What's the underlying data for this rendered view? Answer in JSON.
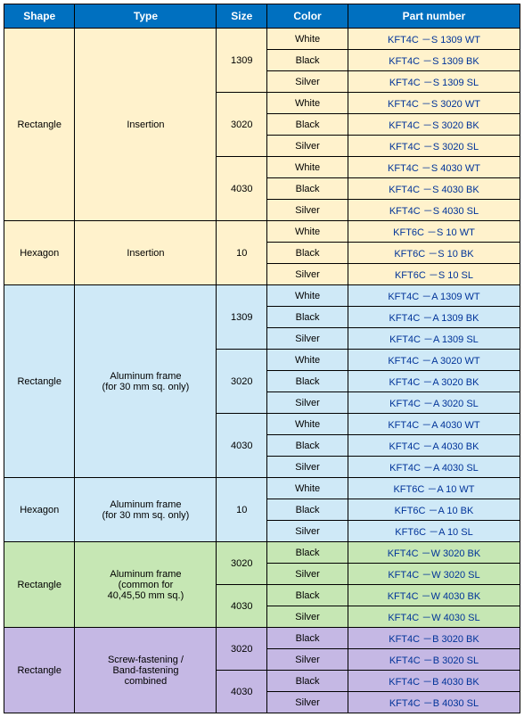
{
  "headers": [
    "Shape",
    "Type",
    "Size",
    "Color",
    "Part number"
  ],
  "groups": [
    {
      "bg": "#fff2cc",
      "shape": "Rectangle",
      "type": "Insertion",
      "sizes": [
        {
          "size": "1309",
          "rows": [
            {
              "color": "White",
              "part": "KFT4C －S 1309 WT"
            },
            {
              "color": "Black",
              "part": "KFT4C －S 1309 BK"
            },
            {
              "color": "Silver",
              "part": "KFT4C －S 1309 SL"
            }
          ]
        },
        {
          "size": "3020",
          "rows": [
            {
              "color": "White",
              "part": "KFT4C －S 3020 WT"
            },
            {
              "color": "Black",
              "part": "KFT4C －S 3020 BK"
            },
            {
              "color": "Silver",
              "part": "KFT4C －S 3020 SL"
            }
          ]
        },
        {
          "size": "4030",
          "rows": [
            {
              "color": "White",
              "part": "KFT4C －S 4030 WT"
            },
            {
              "color": "Black",
              "part": "KFT4C －S 4030 BK"
            },
            {
              "color": "Silver",
              "part": "KFT4C －S 4030 SL"
            }
          ]
        }
      ]
    },
    {
      "bg": "#fff2cc",
      "shape": "Hexagon",
      "type": "Insertion",
      "sizes": [
        {
          "size": "10",
          "rows": [
            {
              "color": "White",
              "part": "KFT6C －S 10 WT"
            },
            {
              "color": "Black",
              "part": "KFT6C －S 10 BK"
            },
            {
              "color": "Silver",
              "part": "KFT6C －S 10 SL"
            }
          ]
        }
      ]
    },
    {
      "bg": "#cfe9f7",
      "shape": "Rectangle",
      "type": "Aluminum frame\n(for 30 mm sq. only)",
      "sizes": [
        {
          "size": "1309",
          "rows": [
            {
              "color": "White",
              "part": "KFT4C －A 1309 WT"
            },
            {
              "color": "Black",
              "part": "KFT4C －A 1309 BK"
            },
            {
              "color": "Silver",
              "part": "KFT4C －A 1309 SL"
            }
          ]
        },
        {
          "size": "3020",
          "rows": [
            {
              "color": "White",
              "part": "KFT4C －A 3020 WT"
            },
            {
              "color": "Black",
              "part": "KFT4C －A 3020 BK"
            },
            {
              "color": "Silver",
              "part": "KFT4C －A 3020 SL"
            }
          ]
        },
        {
          "size": "4030",
          "rows": [
            {
              "color": "White",
              "part": "KFT4C －A 4030 WT"
            },
            {
              "color": "Black",
              "part": "KFT4C －A 4030 BK"
            },
            {
              "color": "Silver",
              "part": "KFT4C －A 4030 SL"
            }
          ]
        }
      ]
    },
    {
      "bg": "#cfe9f7",
      "shape": "Hexagon",
      "type": "Aluminum frame\n(for 30 mm sq. only)",
      "sizes": [
        {
          "size": "10",
          "rows": [
            {
              "color": "White",
              "part": "KFT6C －A 10 WT"
            },
            {
              "color": "Black",
              "part": "KFT6C －A 10 BK"
            },
            {
              "color": "Silver",
              "part": "KFT6C －A 10 SL"
            }
          ]
        }
      ]
    },
    {
      "bg": "#c6e7b4",
      "shape": "Rectangle",
      "type": "Aluminum frame\n(common for\n40,45,50 mm sq.)",
      "sizes": [
        {
          "size": "3020",
          "rows": [
            {
              "color": "Black",
              "part": "KFT4C －W 3020 BK"
            },
            {
              "color": "Silver",
              "part": "KFT4C －W 3020 SL"
            }
          ]
        },
        {
          "size": "4030",
          "rows": [
            {
              "color": "Black",
              "part": "KFT4C －W 4030 BK"
            },
            {
              "color": "Silver",
              "part": "KFT4C －W 4030 SL"
            }
          ]
        }
      ]
    },
    {
      "bg": "#c5b8e4",
      "shape": "Rectangle",
      "type": "Screw-fastening /\nBand-fastening\ncombined",
      "sizes": [
        {
          "size": "3020",
          "rows": [
            {
              "color": "Black",
              "part": "KFT4C －B 3020 BK"
            },
            {
              "color": "Silver",
              "part": "KFT4C －B 3020 SL"
            }
          ]
        },
        {
          "size": "4030",
          "rows": [
            {
              "color": "Black",
              "part": "KFT4C －B 4030 BK"
            },
            {
              "color": "Silver",
              "part": "KFT4C －B 4030 SL"
            }
          ]
        }
      ]
    }
  ]
}
